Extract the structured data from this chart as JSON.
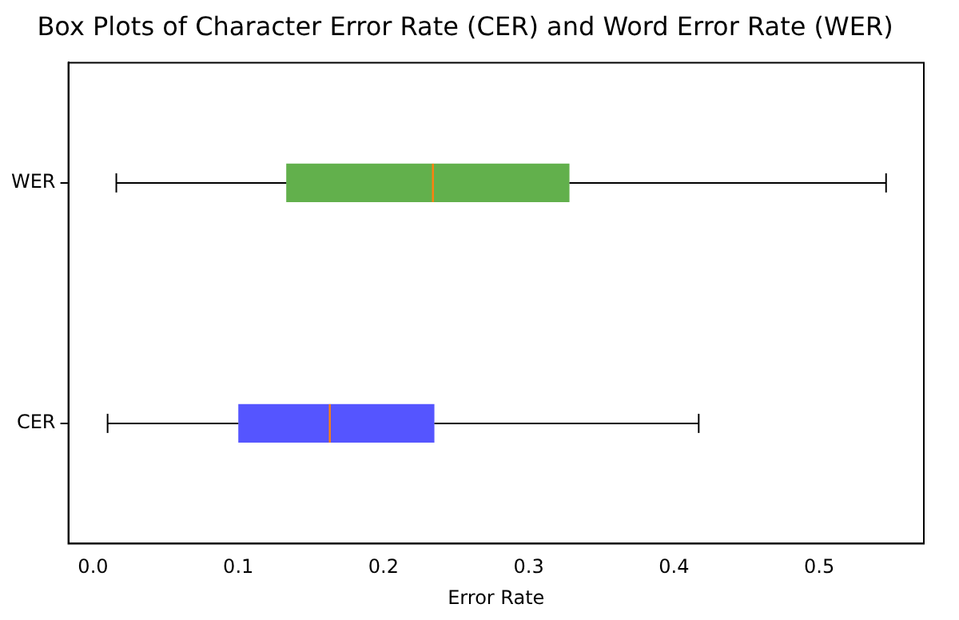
{
  "chart_data": {
    "type": "box",
    "title": "Box Plots of Character Error Rate (CER) and Word Error Rate (WER)",
    "xlabel": "Error Rate",
    "orientation": "horizontal",
    "categories": [
      "WER",
      "CER"
    ],
    "boxes": [
      {
        "low": 0.016,
        "q1": 0.133,
        "median": 0.234,
        "q3": 0.328,
        "high": 0.546
      },
      {
        "low": 0.01,
        "q1": 0.1,
        "median": 0.163,
        "q3": 0.235,
        "high": 0.417
      }
    ],
    "colors": [
      "#62b04c",
      "#5555ff"
    ],
    "xlim": [
      -0.017,
      0.572
    ],
    "xticks": [
      {
        "value": 0,
        "label": "0.0"
      },
      {
        "value": 0.1,
        "label": "0.1"
      },
      {
        "value": 0.2,
        "label": "0.2"
      },
      {
        "value": 0.3,
        "label": "0.3"
      },
      {
        "value": 0.4,
        "label": "0.4"
      },
      {
        "value": 0.5,
        "label": "0.5"
      }
    ],
    "grid": false,
    "legend": false
  }
}
